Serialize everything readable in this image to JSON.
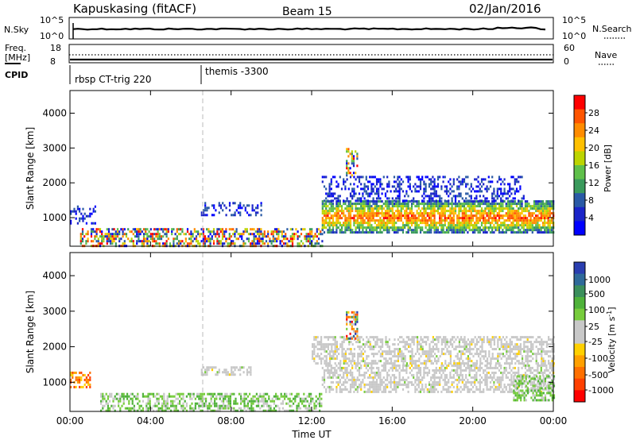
{
  "header": {
    "station": "Kapuskasing (fitACF)",
    "beam": "Beam 15",
    "date": "02/Jan/2016"
  },
  "top_panels": {
    "nsky_label": "N.Sky",
    "nsky_ticks": [
      "10^5",
      "10^0"
    ],
    "nsearch_label": "N.Search",
    "nsearch_ticks": [
      "10^5",
      "10^0"
    ],
    "freq_label": "Freq.",
    "freq_unit": "[MHz]",
    "freq_ticks": [
      "18",
      "8"
    ],
    "nave_label": "Nave",
    "nave_ticks": [
      "60",
      "0"
    ],
    "cpid_label": "CPID",
    "cpid_modes": [
      "rbsp CT-trig 220",
      "themis -3300"
    ]
  },
  "power_colorbar": {
    "label": "Power [dB]",
    "ticks": [
      "28",
      "24",
      "20",
      "16",
      "12",
      "8",
      "4"
    ],
    "colors": [
      "#ff0000",
      "#ff5500",
      "#ff8c00",
      "#ffc000",
      "#bcd400",
      "#5fc04a",
      "#3a9a5c",
      "#2a5aa6",
      "#1a24c8",
      "#0000ff"
    ]
  },
  "velocity_colorbar": {
    "label": "Velocity [m s",
    "label_sup": "-1",
    "label_end": "]",
    "ticks": [
      "1000",
      "500",
      "100",
      "25",
      "-25",
      "-100",
      "-500",
      "-1000"
    ],
    "colors": [
      "#2a3eb0",
      "#2f6a9a",
      "#3b8f5c",
      "#4fb23a",
      "#77cc3c",
      "#c8c8c8",
      "#c8c8c8",
      "#ffd000",
      "#ffa000",
      "#ff7000",
      "#ff4000",
      "#ff0000"
    ]
  },
  "chart_data": [
    {
      "type": "heatmap",
      "panel": "power",
      "ylabel": "Slant Range [km]",
      "yticks": [
        "1000",
        "2000",
        "3000",
        "4000"
      ],
      "ylim": [
        180,
        4650
      ],
      "xlim": [
        0,
        24
      ],
      "echo_regions": [
        {
          "t0": 0.0,
          "t1": 1.3,
          "r0": 850,
          "r1": 1350,
          "level": "low"
        },
        {
          "t0": 0.5,
          "t1": 12.5,
          "r0": 200,
          "r1": 700,
          "level": "mixed"
        },
        {
          "t0": 6.5,
          "t1": 9.5,
          "r0": 1050,
          "r1": 1450,
          "level": "low"
        },
        {
          "t0": 12.5,
          "t1": 24.0,
          "r0": 600,
          "r1": 1500,
          "level": "high"
        },
        {
          "t0": 12.5,
          "t1": 22.5,
          "r0": 1450,
          "r1": 2200,
          "level": "low"
        },
        {
          "t0": 13.7,
          "t1": 14.3,
          "r0": 2200,
          "r1": 3000,
          "level": "mixed"
        }
      ]
    },
    {
      "type": "heatmap",
      "panel": "velocity",
      "ylabel": "Slant Range [km]",
      "yticks": [
        "1000",
        "2000",
        "3000",
        "4000"
      ],
      "ylim": [
        180,
        4650
      ],
      "xlabel": "Time UT",
      "xticks": [
        "00:00",
        "04:00",
        "08:00",
        "12:00",
        "16:00",
        "20:00",
        "00:00"
      ],
      "xlim": [
        0,
        24
      ],
      "echo_regions": [
        {
          "t0": 0.0,
          "t1": 1.0,
          "r0": 850,
          "r1": 1300,
          "level": "negative"
        },
        {
          "t0": 1.5,
          "t1": 12.5,
          "r0": 200,
          "r1": 700,
          "level": "positive"
        },
        {
          "t0": 6.5,
          "t1": 9.0,
          "r0": 1200,
          "r1": 1450,
          "level": "near-zero"
        },
        {
          "t0": 12.5,
          "t1": 24.0,
          "r0": 700,
          "r1": 1500,
          "level": "near-zero"
        },
        {
          "t0": 12.0,
          "t1": 24.0,
          "r0": 1500,
          "r1": 2300,
          "level": "near-zero"
        },
        {
          "t0": 22.0,
          "t1": 24.0,
          "r0": 500,
          "r1": 1200,
          "level": "positive"
        },
        {
          "t0": 13.7,
          "t1": 14.3,
          "r0": 2200,
          "r1": 3000,
          "level": "mixed"
        }
      ]
    }
  ]
}
